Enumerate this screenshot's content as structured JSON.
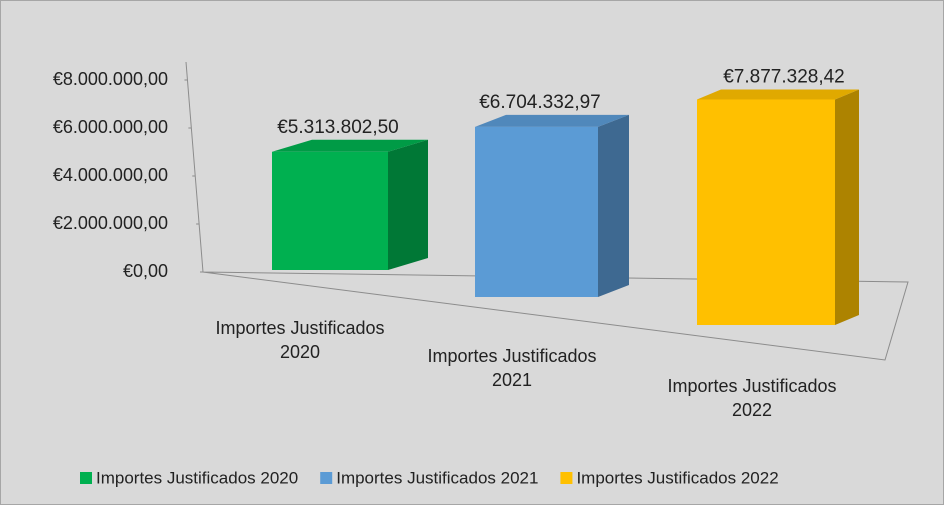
{
  "chart_data": {
    "type": "bar3d",
    "categories": [
      "Importes Justificados 2020",
      "Importes Justificados 2021",
      "Importes Justificados 2022"
    ],
    "values": [
      5313802.5,
      6704332.97,
      7877328.42
    ],
    "value_labels": [
      "€5.313.802,50",
      "€6.704.332,97",
      "€7.877.328,42"
    ],
    "colors": [
      "#00b050",
      "#5b9bd5",
      "#ffc000"
    ],
    "ylim": [
      0,
      8000000
    ],
    "yticks": [
      {
        "value": 0,
        "label": "€0,00"
      },
      {
        "value": 2000000,
        "label": "€2.000.000,00"
      },
      {
        "value": 4000000,
        "label": "€4.000.000,00"
      },
      {
        "value": 6000000,
        "label": "€6.000.000,00"
      },
      {
        "value": 8000000,
        "label": "€8.000.000,00"
      }
    ],
    "legend": "bottom"
  }
}
